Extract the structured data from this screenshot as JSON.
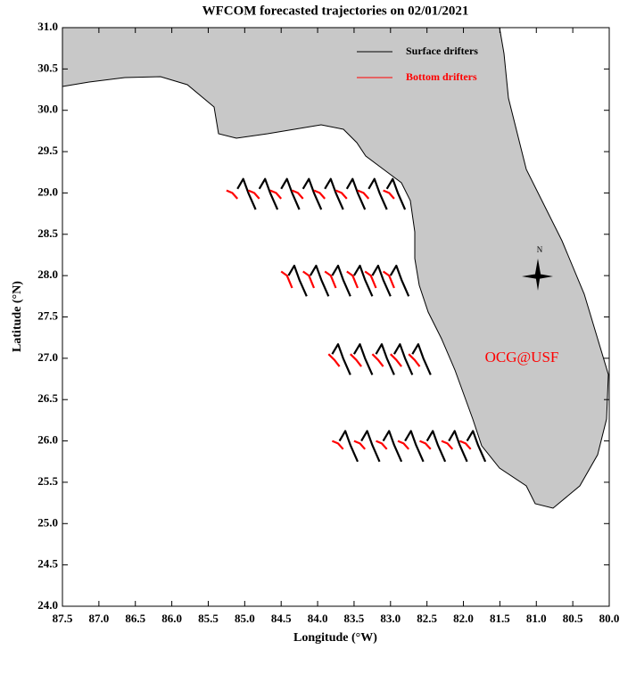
{
  "chart_data": {
    "type": "trajectory",
    "title": "WFCOM forecasted trajectories on 02/01/2021",
    "x_label": "Longitude (°W)",
    "y_label": "Latitude (°N)",
    "xlim": [
      87.5,
      80.0
    ],
    "ylim": [
      24.0,
      31.0
    ],
    "xticks": [
      87.5,
      {
        "value": 87,
        "label": "87.0"
      },
      86.5,
      {
        "value": 86,
        "label": "86.0"
      },
      85.5,
      {
        "value": 85,
        "label": "85.0"
      },
      84.5,
      {
        "value": 84,
        "label": "84.0"
      },
      83.5,
      {
        "value": 83,
        "label": "83.0"
      },
      82.5,
      {
        "value": 82,
        "label": "82.0"
      },
      81.5,
      {
        "value": 81,
        "label": "81.0"
      },
      80.5,
      {
        "value": 80,
        "label": "80.0"
      }
    ],
    "yticks": [
      {
        "value": 24,
        "label": "24.0"
      },
      24.5,
      {
        "value": 25,
        "label": "25.0"
      },
      25.5,
      {
        "value": 26,
        "label": "26.0"
      },
      26.5,
      {
        "value": 27,
        "label": "27.0"
      },
      27.5,
      {
        "value": 28,
        "label": "28.0"
      },
      28.5,
      {
        "value": 29,
        "label": "29.0"
      },
      29.5,
      {
        "value": 30,
        "label": "30.0"
      },
      30.5,
      {
        "value": 31,
        "label": "31.0"
      }
    ],
    "legend": "upper right",
    "series": [
      {
        "name": "Surface drifters",
        "color": "#000000",
        "x": [
          85.1,
          85.02,
          84.95,
          84.85,
          null,
          84.8,
          84.72,
          84.65,
          84.55,
          null,
          84.5,
          84.42,
          84.35,
          84.25,
          null,
          84.2,
          84.12,
          84.05,
          83.95,
          null,
          83.9,
          83.82,
          83.75,
          83.65,
          null,
          83.6,
          83.52,
          83.45,
          83.35,
          null,
          83.3,
          83.22,
          83.15,
          83.05,
          null,
          83.05,
          82.97,
          82.9,
          82.8,
          null,
          84.4,
          84.32,
          84.25,
          84.15,
          null,
          84.1,
          84.02,
          83.95,
          83.85,
          null,
          83.8,
          83.72,
          83.65,
          83.55,
          null,
          83.5,
          83.42,
          83.35,
          83.25,
          null,
          83.25,
          83.17,
          83.1,
          83.0,
          null,
          83.0,
          82.92,
          82.85,
          82.75,
          null,
          83.8,
          83.72,
          83.65,
          83.55,
          null,
          83.5,
          83.42,
          83.35,
          83.25,
          null,
          83.2,
          83.12,
          83.05,
          82.95,
          null,
          82.95,
          82.87,
          82.8,
          82.7,
          null,
          82.7,
          82.62,
          82.55,
          82.45,
          null,
          83.7,
          83.62,
          83.55,
          83.45,
          null,
          83.4,
          83.32,
          83.25,
          83.15,
          null,
          83.1,
          83.02,
          82.95,
          82.85,
          null,
          82.8,
          82.72,
          82.65,
          82.55,
          null,
          82.5,
          82.42,
          82.35,
          82.25,
          null,
          82.2,
          82.12,
          82.05,
          81.95,
          null,
          81.95,
          81.87,
          81.8,
          81.7
        ],
        "y": [
          29.05,
          29.17,
          29.0,
          28.8,
          null,
          29.05,
          29.17,
          29.0,
          28.8,
          null,
          29.05,
          29.17,
          29.0,
          28.8,
          null,
          29.05,
          29.17,
          29.0,
          28.8,
          null,
          29.05,
          29.17,
          29.0,
          28.8,
          null,
          29.05,
          29.17,
          29.0,
          28.8,
          null,
          29.05,
          29.17,
          29.0,
          28.8,
          null,
          29.05,
          29.17,
          29.0,
          28.8,
          null,
          28.0,
          28.12,
          27.95,
          27.75,
          null,
          28.0,
          28.12,
          27.95,
          27.75,
          null,
          28.0,
          28.12,
          27.95,
          27.75,
          null,
          28.0,
          28.12,
          27.95,
          27.75,
          null,
          28.0,
          28.12,
          27.95,
          27.75,
          null,
          28.0,
          28.12,
          27.95,
          27.75,
          null,
          27.05,
          27.17,
          27.0,
          26.8,
          null,
          27.05,
          27.17,
          27.0,
          26.8,
          null,
          27.05,
          27.17,
          27.0,
          26.8,
          null,
          27.05,
          27.17,
          27.0,
          26.8,
          null,
          27.05,
          27.17,
          27.0,
          26.8,
          null,
          26.0,
          26.12,
          25.95,
          25.75,
          null,
          26.0,
          26.12,
          25.95,
          25.75,
          null,
          26.0,
          26.12,
          25.95,
          25.75,
          null,
          26.0,
          26.12,
          25.95,
          25.75,
          null,
          26.0,
          26.12,
          25.95,
          25.75,
          null,
          26.0,
          26.12,
          25.95,
          25.75,
          null,
          26.0,
          26.12,
          25.95,
          25.75
        ]
      },
      {
        "name": "Bottom drifters",
        "color": "#ff0000",
        "x": [
          85.25,
          85.17,
          85.1,
          null,
          84.95,
          84.87,
          84.8,
          null,
          84.65,
          84.57,
          84.5,
          null,
          84.35,
          84.27,
          84.2,
          null,
          84.05,
          83.97,
          83.9,
          null,
          83.75,
          83.67,
          83.6,
          null,
          83.45,
          83.37,
          83.3,
          null,
          83.1,
          83.02,
          82.95,
          null,
          84.5,
          84.42,
          84.35,
          null,
          84.2,
          84.12,
          84.05,
          null,
          83.9,
          83.82,
          83.75,
          null,
          83.6,
          83.52,
          83.45,
          null,
          83.35,
          83.27,
          83.2,
          null,
          83.1,
          83.02,
          82.95,
          null,
          83.85,
          83.77,
          83.7,
          null,
          83.55,
          83.47,
          83.4,
          null,
          83.25,
          83.17,
          83.1,
          null,
          83.0,
          82.92,
          82.85,
          null,
          82.75,
          82.67,
          82.6,
          null,
          83.8,
          83.72,
          83.65,
          null,
          83.5,
          83.42,
          83.35,
          null,
          83.2,
          83.12,
          83.05,
          null,
          82.9,
          82.82,
          82.75,
          null,
          82.6,
          82.52,
          82.45,
          null,
          82.3,
          82.22,
          82.15,
          null,
          82.05,
          81.97,
          81.9
        ],
        "y": [
          29.03,
          29.0,
          28.93,
          null,
          29.03,
          29.0,
          28.93,
          null,
          29.03,
          29.0,
          28.93,
          null,
          29.03,
          29.0,
          28.93,
          null,
          29.03,
          29.0,
          28.93,
          null,
          29.03,
          29.0,
          28.93,
          null,
          29.03,
          29.0,
          28.93,
          null,
          29.03,
          29.0,
          28.93,
          null,
          28.05,
          28.0,
          27.85,
          null,
          28.05,
          28.0,
          27.85,
          null,
          28.05,
          28.0,
          27.85,
          null,
          28.05,
          28.0,
          27.85,
          null,
          28.05,
          28.0,
          27.85,
          null,
          28.05,
          28.0,
          27.85,
          null,
          27.05,
          26.98,
          26.9,
          null,
          27.05,
          26.98,
          26.9,
          null,
          27.05,
          26.98,
          26.9,
          null,
          27.05,
          26.98,
          26.9,
          null,
          27.05,
          26.98,
          26.9,
          null,
          26.0,
          25.97,
          25.9,
          null,
          26.0,
          25.97,
          25.9,
          null,
          26.0,
          25.97,
          25.9,
          null,
          26.0,
          25.97,
          25.9,
          null,
          26.0,
          25.97,
          25.9,
          null,
          26.0,
          25.97,
          25.9,
          null,
          26.0,
          25.97,
          25.9
        ]
      }
    ],
    "annotation": "OCG@USF",
    "annotation_color": "#ff0000",
    "compass_label": "N"
  }
}
